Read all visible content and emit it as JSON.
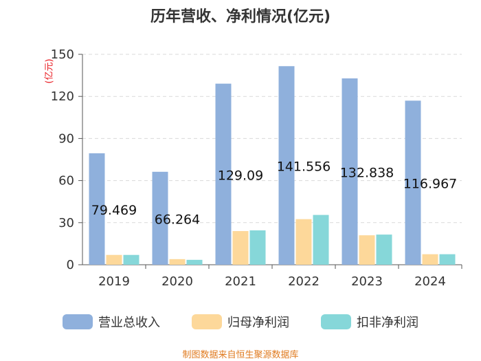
{
  "chart_data": {
    "type": "bar",
    "title": "历年营收、净利情况(亿元)",
    "ylabel": "(亿元)",
    "xlabel": "",
    "ylim": [
      0,
      150
    ],
    "yticks": [
      0,
      30,
      60,
      90,
      120,
      150
    ],
    "categories": [
      "2019",
      "2020",
      "2021",
      "2022",
      "2023",
      "2024"
    ],
    "series": [
      {
        "name": "营业总收入",
        "color": "#8fb0dc",
        "values": [
          79.469,
          66.264,
          129.09,
          141.556,
          132.838,
          116.967
        ],
        "labels": [
          "79.469",
          "66.264",
          "129.09",
          "141.556",
          "132.838",
          "116.967"
        ]
      },
      {
        "name": "归母净利润",
        "color": "#fdd89a",
        "values": [
          7.0,
          4.0,
          24.0,
          32.5,
          21.0,
          7.5
        ]
      },
      {
        "name": "扣非净利润",
        "color": "#86d7d9",
        "values": [
          7.0,
          3.5,
          24.5,
          35.5,
          21.5,
          7.5
        ]
      }
    ],
    "legend_position": "bottom",
    "grid": true
  },
  "source": "制图数据来自恒生聚源数据库"
}
